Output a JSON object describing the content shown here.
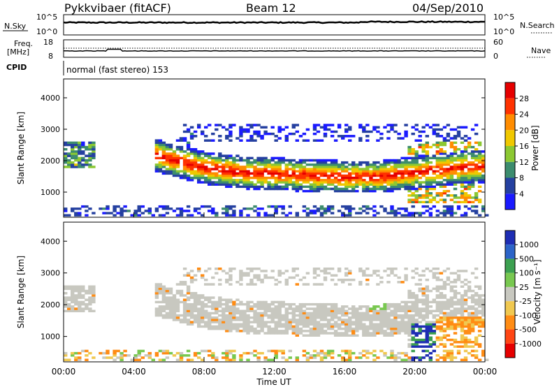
{
  "header": {
    "radar": "Pykkvibaer (fitACF)",
    "beam": "Beam 12",
    "date": "04/Sep/2010"
  },
  "noise_panel": {
    "left_label": "N.Sky",
    "left_ticks": [
      "10^5",
      "10^0"
    ],
    "right_label": "N.Search",
    "right_ticks": [
      "10^5",
      "10^0"
    ]
  },
  "freq_panel": {
    "left_label_1": "Freq.",
    "left_label_2": "[MHz]",
    "left_ticks": [
      "18",
      "8"
    ],
    "right_label": "Nave",
    "right_ticks": [
      "60",
      "0"
    ]
  },
  "cpid_panel": {
    "label": "CPID",
    "text": "normal (fast stereo) 153"
  },
  "chart_data": [
    {
      "type": "heatmap",
      "name": "power",
      "xlabel": "Time UT",
      "ylabel": "Slant Range [km]",
      "xlim": [
        0,
        24
      ],
      "ylim": [
        200,
        4600
      ],
      "yticks": [
        "1000",
        "2000",
        "3000",
        "4000"
      ],
      "colorbar_label": "Power [dB]",
      "colorbar_ticks": [
        "4",
        "8",
        "12",
        "16",
        "20",
        "24",
        "28"
      ],
      "colorbar_colors": [
        "#1a1aff",
        "#2540a0",
        "#3c8c6e",
        "#8cc832",
        "#f0c800",
        "#ff8c00",
        "#ff3200",
        "#e60000"
      ],
      "main_band": [
        {
          "t": 5.2,
          "r": 2150
        },
        {
          "t": 6.5,
          "r": 1950
        },
        {
          "t": 8,
          "r": 1750
        },
        {
          "t": 10,
          "r": 1600
        },
        {
          "t": 12,
          "r": 1550
        },
        {
          "t": 14,
          "r": 1500
        },
        {
          "t": 16,
          "r": 1450
        },
        {
          "t": 18,
          "r": 1450
        },
        {
          "t": 19.5,
          "r": 1550
        },
        {
          "t": 21,
          "r": 1650
        },
        {
          "t": 22.5,
          "r": 1750
        },
        {
          "t": 24,
          "r": 1800
        }
      ]
    },
    {
      "type": "heatmap",
      "name": "velocity",
      "xlabel": "Time UT",
      "ylabel": "Slant Range [km]",
      "xlim": [
        0,
        24
      ],
      "ylim": [
        200,
        4600
      ],
      "yticks": [
        "1000",
        "2000",
        "3000",
        "4000"
      ],
      "colorbar_label": "Velocity [m s⁻¹]",
      "colorbar_ticks": [
        "1000",
        "500",
        "100",
        "25",
        "-25",
        "-100",
        "-500",
        "-1000"
      ],
      "colorbar_colors": [
        "#1e2db4",
        "#2c64c8",
        "#3ca050",
        "#78c850",
        "#c8c8c0",
        "#f0c850",
        "#ff8c14",
        "#ff4614",
        "#e60000"
      ]
    }
  ],
  "x_ticks": [
    "00:00",
    "04:00",
    "08:00",
    "12:00",
    "16:00",
    "20:00",
    "00:00"
  ],
  "xlabel": "Time UT"
}
